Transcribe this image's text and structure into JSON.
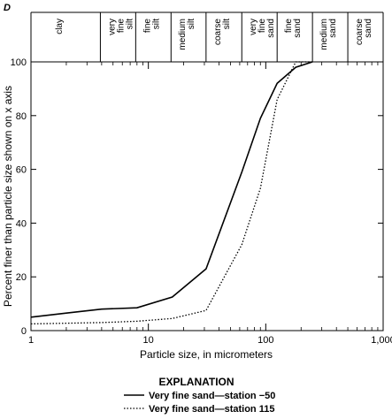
{
  "panel_label": "D",
  "chart_data": {
    "type": "line",
    "x_scale": "log",
    "xlim": [
      1,
      1000
    ],
    "ylim": [
      0,
      100
    ],
    "xlabel": "Particle size, in micrometers",
    "ylabel": "Percent finer than particle size shown on x axis",
    "x_ticks": [
      {
        "value": 1,
        "label": "1"
      },
      {
        "value": 10,
        "label": "10"
      },
      {
        "value": 100,
        "label": "100"
      },
      {
        "value": 1000,
        "label": "1,000"
      }
    ],
    "y_ticks": [
      {
        "value": 0,
        "label": "0"
      },
      {
        "value": 20,
        "label": "20"
      },
      {
        "value": 40,
        "label": "40"
      },
      {
        "value": 60,
        "label": "60"
      },
      {
        "value": 80,
        "label": "80"
      },
      {
        "value": 100,
        "label": "100"
      }
    ],
    "size_classes": [
      {
        "lines": [
          "clay"
        ],
        "from": 1,
        "to": 3.9
      },
      {
        "lines": [
          "very",
          "fine",
          "silt"
        ],
        "from": 3.9,
        "to": 7.8
      },
      {
        "lines": [
          "fine",
          "silt"
        ],
        "from": 7.8,
        "to": 15.6
      },
      {
        "lines": [
          "medium",
          "silt"
        ],
        "from": 15.6,
        "to": 31
      },
      {
        "lines": [
          "coarse",
          "silt"
        ],
        "from": 31,
        "to": 62.5
      },
      {
        "lines": [
          "very",
          "fine",
          "sand"
        ],
        "from": 62.5,
        "to": 125
      },
      {
        "lines": [
          "fine",
          "sand"
        ],
        "from": 125,
        "to": 250
      },
      {
        "lines": [
          "medium",
          "sand"
        ],
        "from": 250,
        "to": 500
      },
      {
        "lines": [
          "coarse",
          "sand"
        ],
        "from": 500,
        "to": 1000
      }
    ],
    "legend_title": "EXPLANATION",
    "series": [
      {
        "name": "Very fine sand—station −50",
        "style": "solid",
        "x": [
          1,
          2,
          4,
          8,
          16,
          31,
          62.5,
          90,
          125,
          180,
          250
        ],
        "y": [
          5,
          6.5,
          8,
          8.5,
          12.5,
          23,
          59,
          79,
          92,
          98,
          100
        ]
      },
      {
        "name": "Very fine sand—station 115",
        "style": "dotted",
        "x": [
          1,
          4,
          8,
          16,
          31,
          62.5,
          90,
          125,
          180,
          250
        ],
        "y": [
          2.5,
          3,
          3.5,
          4.5,
          7.5,
          32,
          53,
          86,
          100,
          100
        ]
      }
    ]
  }
}
